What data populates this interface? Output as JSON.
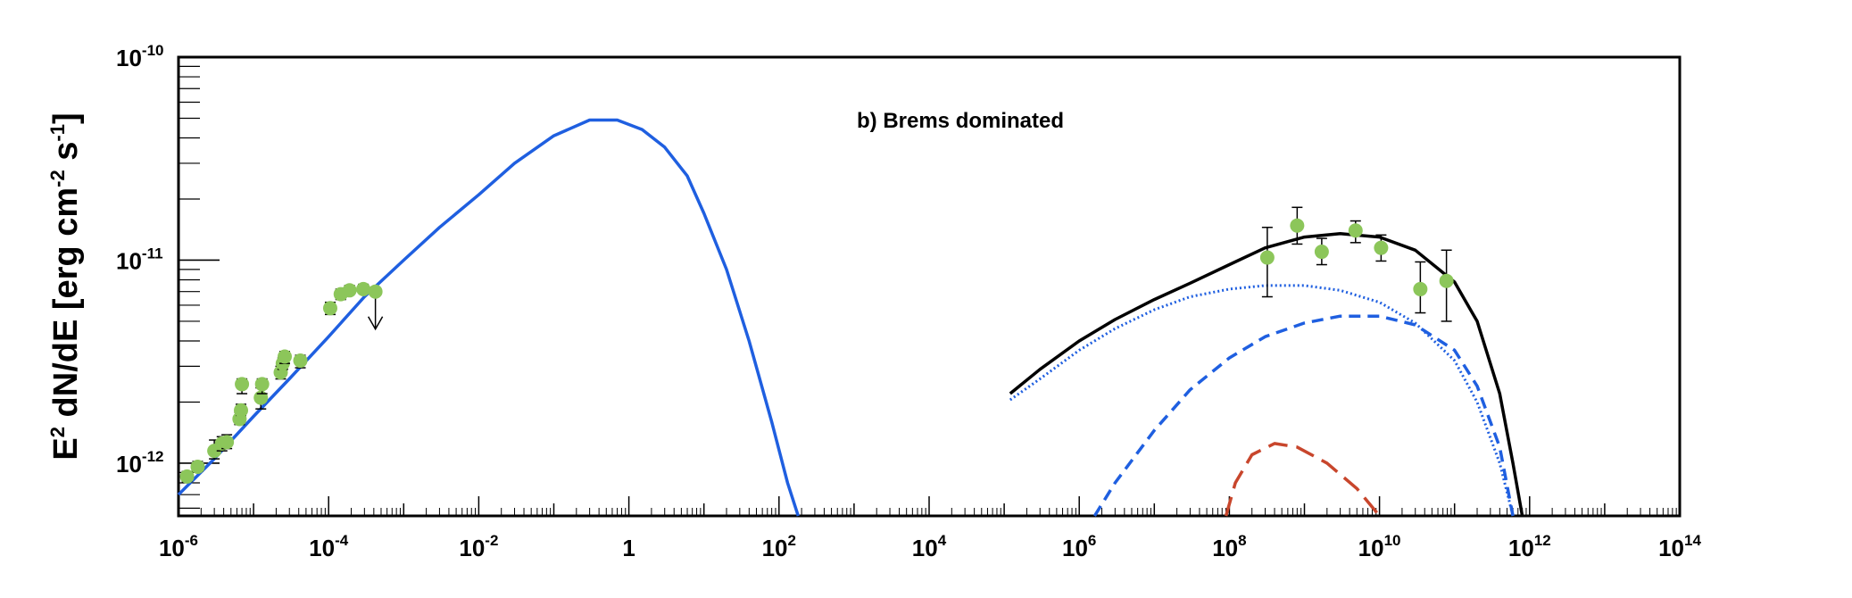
{
  "chart_data": {
    "type": "line",
    "annotation": "b) Brems dominated",
    "xlabel": "",
    "ylabel": "E² dN/dE [erg cm⁻² s⁻¹]",
    "ylabel_parts": {
      "e": "E",
      "sq": "2",
      "mid": " dN/dE [erg cm",
      "m2": "-2",
      "s": " s",
      "m1": "-1",
      "end": "]"
    },
    "x_scale": "log",
    "y_scale": "log",
    "xlim": [
      1e-06,
      100000000000000.0
    ],
    "ylim": [
      5.5e-13,
      1e-10
    ],
    "grid": false,
    "legend": "none",
    "x_ticks": [
      {
        "base": "10",
        "exp": "-6",
        "v": 1e-06
      },
      {
        "base": "10",
        "exp": "-4",
        "v": 0.0001
      },
      {
        "base": "10",
        "exp": "-2",
        "v": 0.01
      },
      {
        "base": "1",
        "exp": "",
        "v": 1
      },
      {
        "base": "10",
        "exp": "2",
        "v": 100.0
      },
      {
        "base": "10",
        "exp": "4",
        "v": 10000.0
      },
      {
        "base": "10",
        "exp": "6",
        "v": 1000000.0
      },
      {
        "base": "10",
        "exp": "8",
        "v": 100000000.0
      },
      {
        "base": "10",
        "exp": "10",
        "v": 10000000000.0
      },
      {
        "base": "10",
        "exp": "12",
        "v": 1000000000000.0
      },
      {
        "base": "10",
        "exp": "14",
        "v": 100000000000000.0
      }
    ],
    "y_ticks": [
      {
        "base": "10",
        "exp": "-12",
        "v": 1e-12
      },
      {
        "base": "10",
        "exp": "-11",
        "v": 1e-11
      },
      {
        "base": "10",
        "exp": "-10",
        "v": 1e-10
      }
    ],
    "series": [
      {
        "style": "solid",
        "color": "#1f5fe0",
        "points": [
          [
            1e-06,
            7e-13
          ],
          [
            3e-06,
            1.05e-12
          ],
          [
            1e-05,
            1.7e-12
          ],
          [
            3e-05,
            2.6e-12
          ],
          [
            0.0001,
            4.2e-12
          ],
          [
            0.0003,
            6.6e-12
          ],
          [
            0.001,
            1e-11
          ],
          [
            0.003,
            1.45e-11
          ],
          [
            0.01,
            2.1e-11
          ],
          [
            0.03,
            3e-11
          ],
          [
            0.1,
            4.1e-11
          ],
          [
            0.3,
            4.9e-11
          ],
          [
            0.7,
            4.9e-11
          ],
          [
            1.5,
            4.4e-11
          ],
          [
            3,
            3.6e-11
          ],
          [
            6,
            2.6e-11
          ],
          [
            10,
            1.7e-11
          ],
          [
            20,
            9e-12
          ],
          [
            40,
            4e-12
          ],
          [
            80,
            1.6e-12
          ],
          [
            130,
            8e-13
          ],
          [
            180,
            5.5e-13
          ]
        ]
      },
      {
        "style": "solid",
        "color": "#000000",
        "points": [
          [
            120000.0,
            2.2e-12
          ],
          [
            300000.0,
            2.9e-12
          ],
          [
            1000000.0,
            4e-12
          ],
          [
            3000000.0,
            5.1e-12
          ],
          [
            10000000.0,
            6.4e-12
          ],
          [
            30000000.0,
            7.7e-12
          ],
          [
            100000000.0,
            9.5e-12
          ],
          [
            300000000.0,
            1.15e-11
          ],
          [
            1000000000.0,
            1.3e-11
          ],
          [
            3000000000.0,
            1.35e-11
          ],
          [
            10000000000.0,
            1.3e-11
          ],
          [
            30000000000.0,
            1.12e-11
          ],
          [
            100000000000.0,
            7.8e-12
          ],
          [
            200000000000.0,
            5e-12
          ],
          [
            400000000000.0,
            2.2e-12
          ],
          [
            600000000000.0,
            1e-12
          ],
          [
            800000000000.0,
            5.5e-13
          ]
        ]
      },
      {
        "style": "dotted",
        "color": "#1f5fe0",
        "points": [
          [
            120000.0,
            2.05e-12
          ],
          [
            300000.0,
            2.6e-12
          ],
          [
            1000000.0,
            3.6e-12
          ],
          [
            3000000.0,
            4.6e-12
          ],
          [
            10000000.0,
            5.7e-12
          ],
          [
            30000000.0,
            6.6e-12
          ],
          [
            100000000.0,
            7.2e-12
          ],
          [
            300000000.0,
            7.5e-12
          ],
          [
            1000000000.0,
            7.5e-12
          ],
          [
            3000000000.0,
            7.1e-12
          ],
          [
            10000000000.0,
            6.2e-12
          ],
          [
            30000000000.0,
            4.9e-12
          ],
          [
            100000000000.0,
            3.2e-12
          ],
          [
            200000000000.0,
            2e-12
          ],
          [
            400000000000.0,
            1e-12
          ],
          [
            600000000000.0,
            5.5e-13
          ]
        ]
      },
      {
        "style": "dashed",
        "color": "#1f5fe0",
        "points": [
          [
            1600000.0,
            5.5e-13
          ],
          [
            3000000.0,
            8e-13
          ],
          [
            10000000.0,
            1.45e-12
          ],
          [
            30000000.0,
            2.3e-12
          ],
          [
            100000000.0,
            3.3e-12
          ],
          [
            300000000.0,
            4.2e-12
          ],
          [
            1000000000.0,
            4.9e-12
          ],
          [
            3000000000.0,
            5.3e-12
          ],
          [
            10000000000.0,
            5.3e-12
          ],
          [
            30000000000.0,
            4.8e-12
          ],
          [
            100000000000.0,
            3.6e-12
          ],
          [
            200000000000.0,
            2.4e-12
          ],
          [
            400000000000.0,
            1.2e-12
          ],
          [
            600000000000.0,
            5.5e-13
          ]
        ]
      },
      {
        "style": "longdash",
        "color": "#c8462c",
        "points": [
          [
            90000000.0,
            5.5e-13
          ],
          [
            120000000.0,
            8e-13
          ],
          [
            200000000.0,
            1.1e-12
          ],
          [
            400000000.0,
            1.25e-12
          ],
          [
            800000000.0,
            1.2e-12
          ],
          [
            2000000000.0,
            1e-12
          ],
          [
            5000000000.0,
            7.5e-13
          ],
          [
            10000000000.0,
            5.5e-13
          ]
        ]
      }
    ],
    "data_points": [
      {
        "x": 1.3e-06,
        "y": 8.6e-13,
        "ylo": 8.1e-13,
        "yhi": 9.1e-13
      },
      {
        "x": 1.8e-06,
        "y": 9.6e-13,
        "ylo": 9.1e-13,
        "yhi": 1.02e-12
      },
      {
        "x": 3e-06,
        "y": 1.15e-12,
        "ylo": 1.05e-12,
        "yhi": 1.3e-12
      },
      {
        "x": 3.8e-06,
        "y": 1.25e-12,
        "ylo": 1.15e-12,
        "yhi": 1.35e-12
      },
      {
        "x": 4.4e-06,
        "y": 1.27e-12,
        "ylo": 1.18e-12,
        "yhi": 1.38e-12
      },
      {
        "x": 6.5e-06,
        "y": 1.65e-12,
        "ylo": 1.55e-12,
        "yhi": 1.78e-12
      },
      {
        "x": 6.8e-06,
        "y": 1.82e-12,
        "ylo": 1.72e-12,
        "yhi": 1.95e-12
      },
      {
        "x": 7e-06,
        "y": 2.45e-12,
        "ylo": 2.2e-12,
        "yhi": 2.6e-12
      },
      {
        "x": 1.25e-05,
        "y": 2.1e-12,
        "ylo": 1.85e-12,
        "yhi": 2.35e-12
      },
      {
        "x": 1.3e-05,
        "y": 2.45e-12,
        "ylo": 2.2e-12,
        "yhi": 2.6e-12
      },
      {
        "x": 2.3e-05,
        "y": 2.8e-12,
        "ylo": 2.6e-12,
        "yhi": 3e-12
      },
      {
        "x": 2.45e-05,
        "y": 3.1e-12,
        "ylo": 2.9e-12,
        "yhi": 3.3e-12
      },
      {
        "x": 2.6e-05,
        "y": 3.35e-12,
        "ylo": 3.1e-12,
        "yhi": 3.55e-12
      },
      {
        "x": 4.2e-05,
        "y": 3.2e-12,
        "ylo": 2.95e-12,
        "yhi": 3.4e-12
      },
      {
        "x": 0.000105,
        "y": 5.8e-12,
        "ylo": 5.4e-12,
        "yhi": 6.2e-12
      },
      {
        "x": 0.000145,
        "y": 6.8e-12,
        "ylo": 6.4e-12,
        "yhi": 7.2e-12
      },
      {
        "x": 0.00019,
        "y": 7.1e-12,
        "ylo": 6.8e-12,
        "yhi": 7.5e-12
      },
      {
        "x": 0.00029,
        "y": 7.2e-12,
        "ylo": 6.9e-12,
        "yhi": 7.6e-12
      },
      {
        "x": 0.00042,
        "y": 7e-12,
        "ylo": 6.8e-12,
        "yhi": 7.2e-12,
        "upper_limit": true
      },
      {
        "x": 320000000.0,
        "y": 1.03e-11,
        "ylo": 6.6e-12,
        "yhi": 1.45e-11
      },
      {
        "x": 800000000.0,
        "y": 1.48e-11,
        "ylo": 1.2e-11,
        "yhi": 1.82e-11
      },
      {
        "x": 1700000000.0,
        "y": 1.1e-11,
        "ylo": 9.5e-12,
        "yhi": 1.28e-11
      },
      {
        "x": 4800000000.0,
        "y": 1.4e-11,
        "ylo": 1.22e-11,
        "yhi": 1.56e-11
      },
      {
        "x": 10500000000.0,
        "y": 1.15e-11,
        "ylo": 9.9e-12,
        "yhi": 1.33e-11
      },
      {
        "x": 35000000000.0,
        "y": 7.2e-12,
        "ylo": 5.5e-12,
        "yhi": 9.8e-12
      },
      {
        "x": 78000000000.0,
        "y": 7.9e-12,
        "ylo": 5e-12,
        "yhi": 1.12e-11
      }
    ],
    "colors": {
      "marker": "#8cc65a",
      "errorbar": "#000000",
      "frame": "#000000"
    }
  }
}
